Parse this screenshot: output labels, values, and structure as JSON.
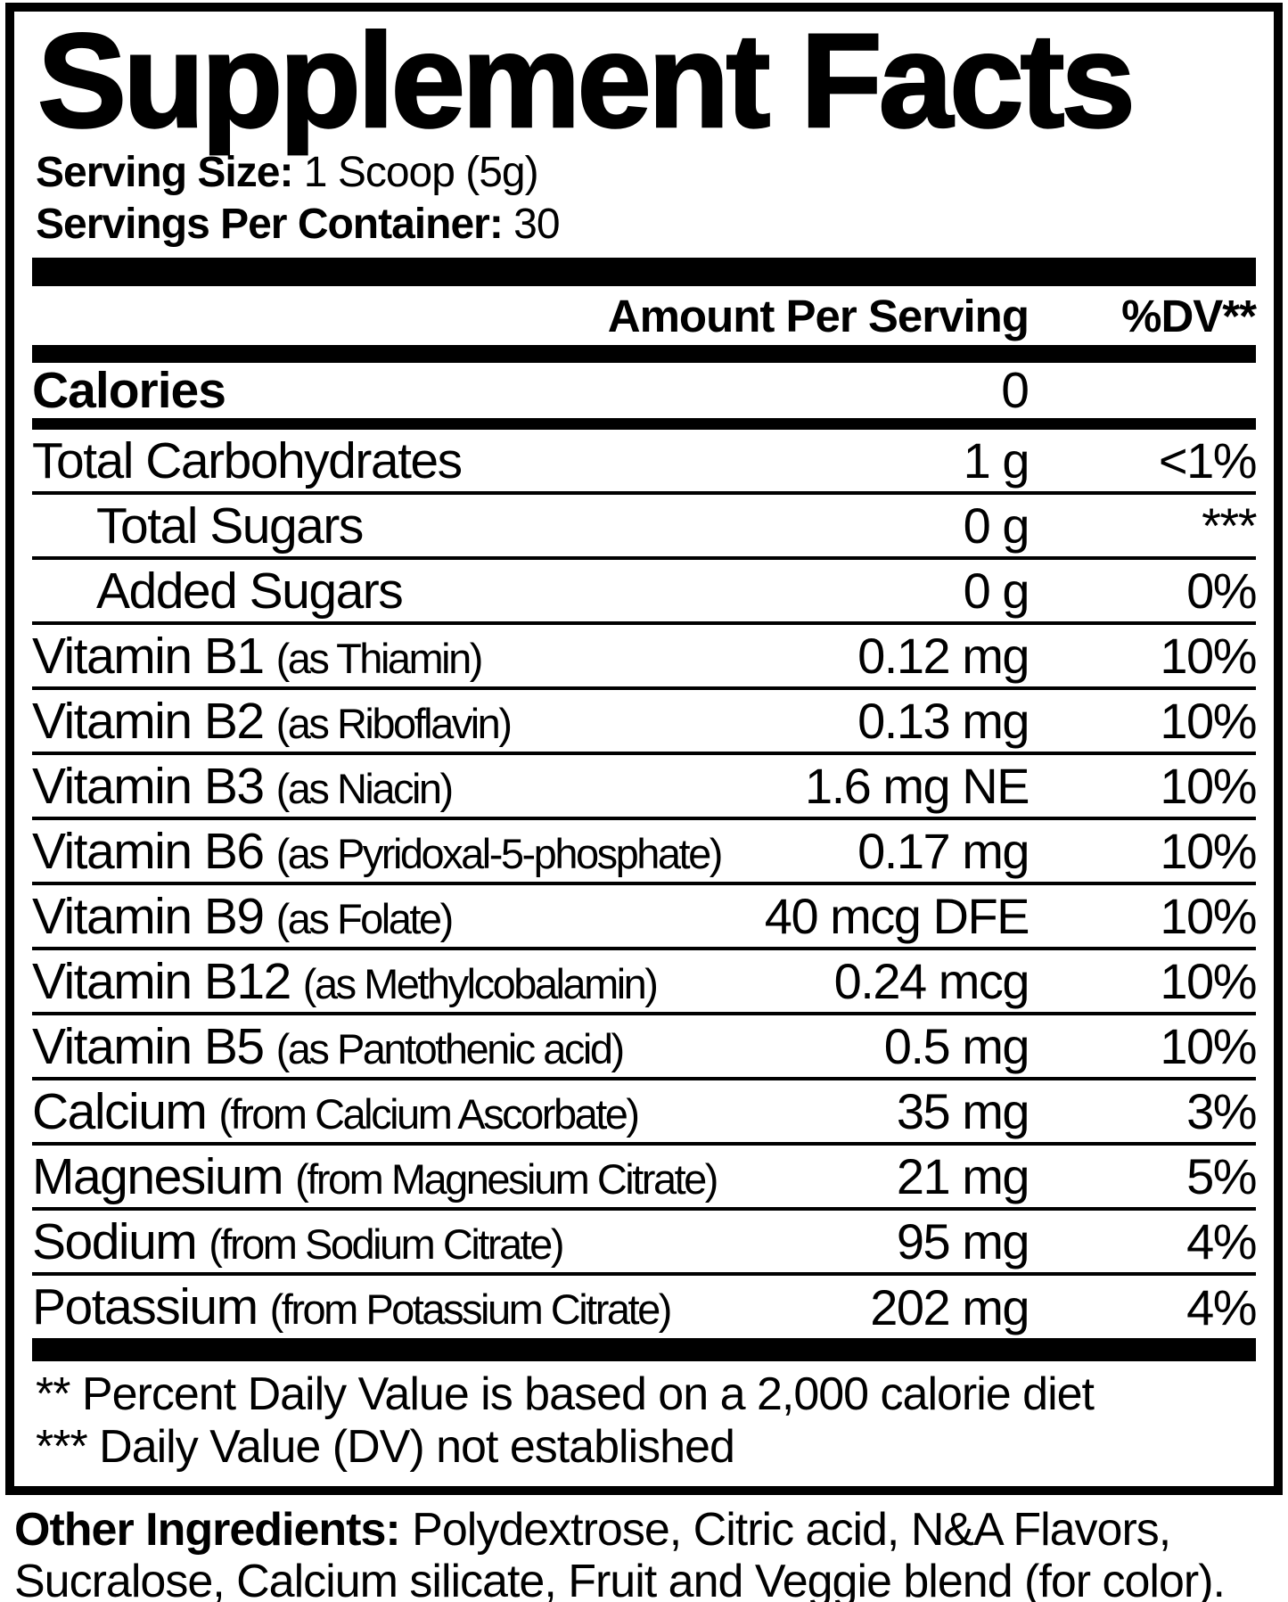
{
  "title": "Supplement Facts",
  "serving": {
    "size_label": "Serving Size:",
    "size_value": "1 Scoop (5g)",
    "count_label": "Servings Per Container:",
    "count_value": "30"
  },
  "header": {
    "amount": "Amount Per Serving",
    "dv": "%DV**"
  },
  "calories": {
    "name": "Calories",
    "amount": "0",
    "dv": ""
  },
  "rows": [
    {
      "name": "Total Carbohydrates",
      "sub": "",
      "amount": "1 g",
      "dv": "<1%"
    },
    {
      "name": "Total Sugars",
      "sub": "",
      "amount": "0 g",
      "dv": "***"
    },
    {
      "name": "Added Sugars",
      "sub": "",
      "amount": "0 g",
      "dv": "0%"
    },
    {
      "name": "Vitamin B1",
      "sub": "(as Thiamin)",
      "amount": "0.12 mg",
      "dv": "10%"
    },
    {
      "name": "Vitamin B2",
      "sub": "(as Riboflavin)",
      "amount": "0.13 mg",
      "dv": "10%"
    },
    {
      "name": "Vitamin B3",
      "sub": "(as Niacin)",
      "amount": "1.6 mg NE",
      "dv": "10%"
    },
    {
      "name": "Vitamin B6",
      "sub": "(as Pyridoxal-5-phosphate)",
      "amount": "0.17 mg",
      "dv": "10%"
    },
    {
      "name": "Vitamin B9",
      "sub": "(as Folate)",
      "amount": "40 mcg DFE",
      "dv": "10%"
    },
    {
      "name": "Vitamin B12",
      "sub": "(as Methylcobalamin)",
      "amount": "0.24 mcg",
      "dv": "10%"
    },
    {
      "name": "Vitamin B5",
      "sub": "(as Pantothenic acid)",
      "amount": "0.5 mg",
      "dv": "10%"
    },
    {
      "name": "Calcium",
      "sub": "(from Calcium Ascorbate)",
      "amount": "35 mg",
      "dv": "3%"
    },
    {
      "name": "Magnesium",
      "sub": "(from Magnesium Citrate)",
      "amount": "21 mg",
      "dv": "5%"
    },
    {
      "name": "Sodium",
      "sub": "(from Sodium Citrate)",
      "amount": "95 mg",
      "dv": "4%"
    },
    {
      "name": "Potassium",
      "sub": "(from Potassium Citrate)",
      "amount": "202 mg",
      "dv": "4%"
    }
  ],
  "footnotes": [
    "** Percent Daily Value is based on a 2,000 calorie diet",
    "*** Daily Value (DV) not established"
  ],
  "other_ingredients": {
    "label": "Other Ingredients:",
    "value": " Polydextrose, Citric acid, N&A Flavors, Sucralose, Calcium silicate, Fruit and Veggie blend (for color)."
  },
  "colors": {
    "text": "#000000",
    "background": "#ffffff"
  }
}
